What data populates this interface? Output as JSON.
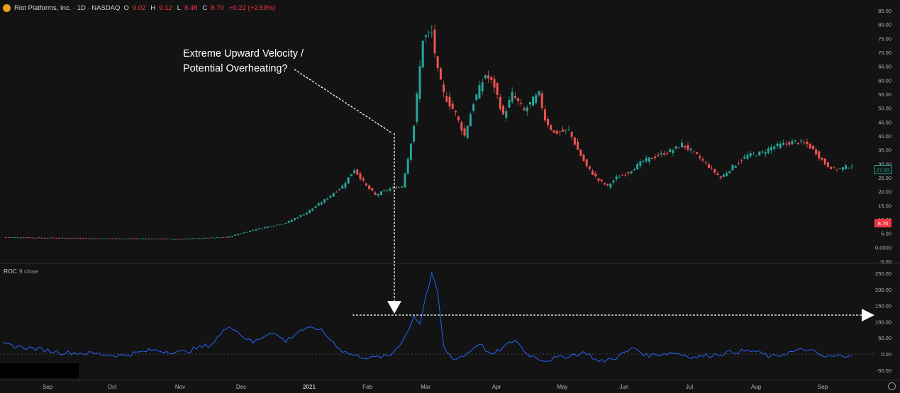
{
  "symbol_legend": {
    "title": "Riot Platforms, Inc. · 1D · NASDAQ",
    "o_label": "O",
    "o_value": "9.02",
    "h_label": "H",
    "h_value": "9.12",
    "l_label": "L",
    "l_value": "8.48",
    "c_label": "C",
    "c_value": "8.70",
    "change": "+0.22 (+2.59%)"
  },
  "annotation": {
    "line1": "Extreme Upward Velocity /",
    "line2": "Potential Overheating?"
  },
  "roc_legend": {
    "name": "ROC",
    "params": "9 close"
  },
  "colors": {
    "up": "#26a69a",
    "down": "#ef5350",
    "roc_line": "#2962ff",
    "background": "#131313",
    "text": "#d1d4dc"
  },
  "chart_data": [
    {
      "type": "candlestick",
      "ylim": [
        -5,
        85
      ],
      "y_ticks": [
        "85.00",
        "80.00",
        "75.00",
        "70.00",
        "65.00",
        "60.00",
        "55.00",
        "50.00",
        "45.00",
        "40.00",
        "35.00",
        "30.00",
        "25.00",
        "20.00",
        "15.00",
        "10.00",
        "5.00",
        "0.0000",
        "-5.00"
      ],
      "price_labels": [
        {
          "value": 27.93,
          "text": "27.93",
          "style": "outline"
        },
        {
          "value": 8.7,
          "text": "8.70",
          "style": "filled"
        }
      ],
      "x_ticks": [
        "Sep",
        "Oct",
        "Nov",
        "Dec",
        "2021",
        "Feb",
        "Mar",
        "Apr",
        "May",
        "Jun",
        "Jul",
        "Aug",
        "Sep"
      ],
      "waypoints": [
        [
          0,
          3.6
        ],
        [
          30,
          3.2
        ],
        [
          60,
          3.0
        ],
        [
          75,
          3.6
        ],
        [
          85,
          6.5
        ],
        [
          95,
          8.8
        ],
        [
          102,
          12.5
        ],
        [
          108,
          17
        ],
        [
          114,
          22
        ],
        [
          118,
          28
        ],
        [
          122,
          22
        ],
        [
          125,
          18.8
        ],
        [
          130,
          21
        ],
        [
          134,
          22
        ],
        [
          136,
          32
        ],
        [
          138,
          44
        ],
        [
          141,
          75
        ],
        [
          144,
          77
        ],
        [
          146,
          63
        ],
        [
          148,
          55
        ],
        [
          152,
          48
        ],
        [
          155,
          40
        ],
        [
          158,
          52
        ],
        [
          162,
          62
        ],
        [
          165,
          58
        ],
        [
          168,
          47
        ],
        [
          171,
          55
        ],
        [
          175,
          49
        ],
        [
          178,
          53
        ],
        [
          180,
          55
        ],
        [
          182,
          46
        ],
        [
          185,
          41
        ],
        [
          190,
          42
        ],
        [
          193,
          35
        ],
        [
          196,
          29
        ],
        [
          200,
          24
        ],
        [
          203,
          22
        ],
        [
          206,
          25
        ],
        [
          210,
          27
        ],
        [
          215,
          31
        ],
        [
          220,
          33
        ],
        [
          225,
          35
        ],
        [
          228,
          37
        ],
        [
          233,
          33
        ],
        [
          237,
          29
        ],
        [
          241,
          25
        ],
        [
          245,
          29
        ],
        [
          250,
          33
        ],
        [
          255,
          34
        ],
        [
          258,
          36
        ],
        [
          262,
          37
        ],
        [
          266,
          38
        ],
        [
          270,
          37
        ],
        [
          273,
          34
        ],
        [
          276,
          30
        ],
        [
          279,
          28
        ],
        [
          282,
          28.5
        ],
        [
          285,
          29.5
        ]
      ]
    },
    {
      "type": "line",
      "name": "ROC 9 close",
      "ylim": [
        -50,
        265
      ],
      "y_ticks": [
        "250.00",
        "200.00",
        "150.00",
        "100.00",
        "50.00",
        "0.00",
        "-50.00"
      ],
      "waypoints": [
        [
          0,
          30
        ],
        [
          8,
          20
        ],
        [
          20,
          5
        ],
        [
          30,
          2
        ],
        [
          40,
          -5
        ],
        [
          50,
          12
        ],
        [
          60,
          5
        ],
        [
          70,
          30
        ],
        [
          76,
          90
        ],
        [
          80,
          60
        ],
        [
          84,
          35
        ],
        [
          90,
          70
        ],
        [
          95,
          40
        ],
        [
          100,
          75
        ],
        [
          106,
          80
        ],
        [
          110,
          45
        ],
        [
          114,
          10
        ],
        [
          118,
          -5
        ],
        [
          124,
          -12
        ],
        [
          130,
          -5
        ],
        [
          134,
          40
        ],
        [
          136,
          70
        ],
        [
          138,
          120
        ],
        [
          140,
          95
        ],
        [
          142,
          180
        ],
        [
          144,
          245
        ],
        [
          146,
          190
        ],
        [
          148,
          20
        ],
        [
          151,
          -15
        ],
        [
          155,
          -5
        ],
        [
          160,
          35
        ],
        [
          164,
          -5
        ],
        [
          168,
          20
        ],
        [
          172,
          45
        ],
        [
          176,
          0
        ],
        [
          182,
          -20
        ],
        [
          190,
          -5
        ],
        [
          196,
          5
        ],
        [
          200,
          -25
        ],
        [
          206,
          -10
        ],
        [
          212,
          20
        ],
        [
          216,
          -5
        ],
        [
          225,
          5
        ],
        [
          232,
          -10
        ],
        [
          240,
          0
        ],
        [
          246,
          8
        ],
        [
          252,
          10
        ],
        [
          258,
          -10
        ],
        [
          264,
          5
        ],
        [
          270,
          15
        ],
        [
          276,
          -10
        ],
        [
          282,
          -5
        ],
        [
          285,
          0
        ]
      ]
    }
  ]
}
